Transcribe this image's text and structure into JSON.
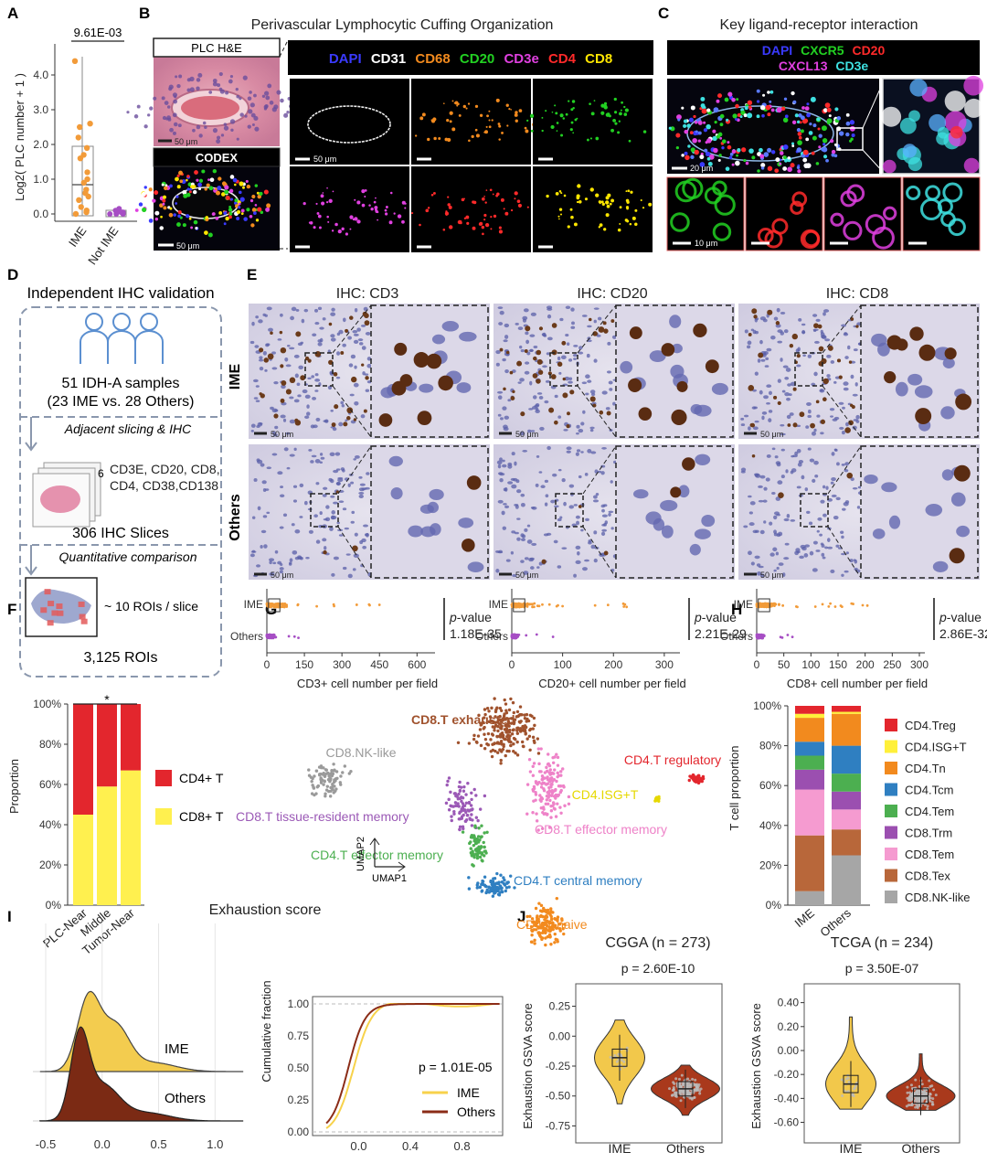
{
  "panels": {
    "A": "A",
    "B": "B",
    "C": "C",
    "D": "D",
    "E": "E",
    "F": "F",
    "G": "G",
    "H": "H",
    "I": "I",
    "J": "J"
  },
  "colors": {
    "ime": "#f29b39",
    "others": "#a64ec4",
    "cd4": "#e3262d",
    "cd8": "#fff04f",
    "ridge_ime": "#f3cc4f",
    "ridge_others": "#7b2a14",
    "violin_ime": "#f2c84b",
    "violin_others": "#a9391c"
  },
  "panelA": {
    "pvalue": "9.61E-03",
    "ylabel": "Log2( PLC number + 1 )",
    "categories": [
      "IME",
      "Not IME"
    ],
    "yticks": [
      "0.0",
      "1.0",
      "2.0",
      "3.0",
      "4.0"
    ]
  },
  "panelB": {
    "title": "Perivascular Lymphocytic Cuffing Organization",
    "he_label": "PLC H&E",
    "codex_label": "CODEX",
    "markers": [
      "DAPI",
      "CD31",
      "CD68",
      "CD20",
      "CD3e",
      "CD4",
      "CD8"
    ],
    "scale_he": "50 μm",
    "scale_codex": "50 μm",
    "scale_tile": "50 μm"
  },
  "panelC": {
    "title": "Key ligand-receptor interaction",
    "markers_line1": [
      "DAPI",
      "CXCR5",
      "CD20"
    ],
    "markers_line2": [
      "CXCL13",
      "CD3e"
    ],
    "scale_main": "20 μm",
    "scale_tile": "10 μm"
  },
  "panelD": {
    "title": "Independent IHC validation",
    "samples": "51 IDH-A samples",
    "samples_split": "(23 IME vs. 28 Others)",
    "step1": "Adjacent slicing & IHC",
    "stack_count": "6",
    "markers": "CD3E, CD20, CD8, CD4, CD38,CD138",
    "slices": "306 IHC Slices",
    "step2": "Quantitative comparison",
    "rois_per_slice": "~ 10 ROIs / slice",
    "rois": "3,125 ROIs"
  },
  "panelE": {
    "row_labels": [
      "IME",
      "Others"
    ],
    "scale": "50 μm",
    "plot_categories": [
      "IME",
      "Others"
    ],
    "pvalue_label": "p-value",
    "columns": [
      {
        "title": "IHC: CD3",
        "xlabel": "CD3+ cell number per field",
        "pvalue": "1.18E-35",
        "xticks": [
          "0",
          "150",
          "300",
          "450",
          "600"
        ]
      },
      {
        "title": "IHC: CD20",
        "xlabel": "CD20+ cell number per field",
        "pvalue": "2.21E-29",
        "xticks": [
          "0",
          "100",
          "200",
          "300"
        ]
      },
      {
        "title": "IHC: CD8",
        "xlabel": "CD8+ cell number per field",
        "pvalue": "2.86E-32",
        "xticks": [
          "0",
          "50",
          "100",
          "150",
          "200",
          "250",
          "300"
        ]
      }
    ]
  },
  "chart_data": [
    {
      "type": "bar",
      "panel": "F",
      "categories": [
        "PLC-Near",
        "Middle",
        "Tumor-Near"
      ],
      "series": [
        {
          "name": "CD8+ T",
          "values": [
            0.45,
            0.59,
            0.67
          ]
        },
        {
          "name": "CD4+ T",
          "values": [
            0.55,
            0.41,
            0.33
          ]
        }
      ],
      "ylabel": "Proportion",
      "yticks": [
        "0%",
        "20%",
        "40%",
        "60%",
        "80%",
        "100%"
      ],
      "ylim": [
        0,
        1
      ],
      "significance": "*",
      "legend_placement": "right"
    },
    {
      "type": "scatter",
      "panel": "G",
      "xlabel": "UMAP1",
      "ylabel": "UMAP2",
      "clusters": [
        {
          "label": "CD8.T exhausted",
          "color": "#a0522d"
        },
        {
          "label": "CD8.NK-like",
          "color": "#9a9a9a"
        },
        {
          "label": "CD4.T regulatory",
          "color": "#e3262d"
        },
        {
          "label": "CD4.ISG+T",
          "color": "#e6d800"
        },
        {
          "label": "CD8.T tissue-resident memory",
          "color": "#9b59b6"
        },
        {
          "label": "CD8.T effector memory",
          "color": "#ee82c8"
        },
        {
          "label": "CD4.T effector memory",
          "color": "#4caf50"
        },
        {
          "label": "CD4.T central memory",
          "color": "#2f7fc1"
        },
        {
          "label": "CD4.T naive",
          "color": "#f28a1e"
        }
      ]
    },
    {
      "type": "bar",
      "panel": "H",
      "categories": [
        "IME",
        "Others"
      ],
      "ylabel": "T cell proportion",
      "yticks": [
        "0%",
        "20%",
        "40%",
        "60%",
        "80%",
        "100%"
      ],
      "ylim": [
        0,
        1
      ],
      "series": [
        {
          "name": "CD8.NK-like",
          "color": "#a6a6a6",
          "values": [
            0.07,
            0.25
          ]
        },
        {
          "name": "CD8.Tex",
          "color": "#b8673a",
          "values": [
            0.28,
            0.13
          ]
        },
        {
          "name": "CD8.Tem",
          "color": "#f59bd0",
          "values": [
            0.23,
            0.1
          ]
        },
        {
          "name": "CD8.Trm",
          "color": "#9b4fb0",
          "values": [
            0.1,
            0.09
          ]
        },
        {
          "name": "CD4.Tem",
          "color": "#4caf50",
          "values": [
            0.07,
            0.09
          ]
        },
        {
          "name": "CD4.Tcm",
          "color": "#2f7fc1",
          "values": [
            0.07,
            0.14
          ]
        },
        {
          "name": "CD4.Tn",
          "color": "#f28a1e",
          "values": [
            0.12,
            0.16
          ]
        },
        {
          "name": "CD4.ISG+T",
          "color": "#fff03a",
          "values": [
            0.02,
            0.01
          ]
        },
        {
          "name": "CD4.Treg",
          "color": "#e3262d",
          "values": [
            0.04,
            0.03
          ]
        }
      ]
    },
    {
      "type": "area",
      "panel": "I-left",
      "title": "Exhaustion score",
      "series": [
        {
          "name": "IME"
        },
        {
          "name": "Others"
        }
      ],
      "xticks": [
        "-0.5",
        "0.0",
        "0.5",
        "1.0"
      ],
      "xlim": [
        -0.5,
        1.2
      ]
    },
    {
      "type": "line",
      "panel": "I-right",
      "ylabel": "Cumulative fraction",
      "yticks": [
        "0.00",
        "0.25",
        "0.50",
        "0.75",
        "1.00"
      ],
      "xticks": [
        "0.0",
        "0.4",
        "0.8"
      ],
      "pvalue": "p = 1.01E-05",
      "series": [
        {
          "name": "IME"
        },
        {
          "name": "Others"
        }
      ],
      "legend_placement": "bottom-right"
    },
    {
      "type": "scatter",
      "panel": "J-CGGA",
      "title": "CGGA (n = 273)",
      "pvalue": "p = 2.60E-10",
      "ylabel": "Exhaustion GSVA score",
      "categories": [
        "IME",
        "Others"
      ],
      "yticks": [
        "0.25",
        "0.00",
        "-0.25",
        "-0.50",
        "-0.75"
      ],
      "medians": [
        -0.18,
        -0.44
      ]
    },
    {
      "type": "scatter",
      "panel": "J-TCGA",
      "title": "TCGA (n = 234)",
      "pvalue": "p = 3.50E-07",
      "ylabel": "Exhaustion GSVA score",
      "categories": [
        "IME",
        "Others"
      ],
      "yticks": [
        "0.40",
        "0.20",
        "0.00",
        "-0.20",
        "-0.40",
        "-0.60"
      ],
      "medians": [
        -0.28,
        -0.38
      ]
    }
  ]
}
